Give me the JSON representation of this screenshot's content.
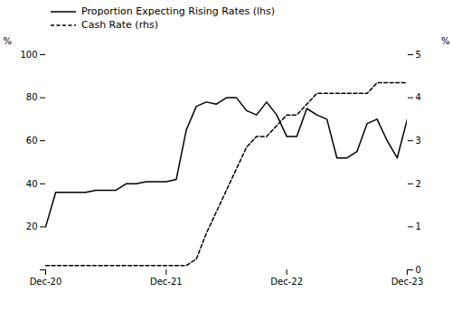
{
  "chart_data": {
    "type": "line",
    "x": [
      0,
      1,
      2,
      3,
      4,
      5,
      6,
      7,
      8,
      9,
      10,
      11,
      12,
      13,
      14,
      15,
      16,
      17,
      18,
      19,
      20,
      21,
      22,
      23,
      24,
      25,
      26,
      27,
      28,
      29,
      30,
      31,
      32,
      33,
      34,
      35,
      36
    ],
    "xlim": [
      0,
      36
    ],
    "xticks": [
      {
        "value": 0,
        "label": "Dec-20"
      },
      {
        "value": 12,
        "label": "Dec-21"
      },
      {
        "value": 24,
        "label": "Dec-22"
      },
      {
        "value": 36,
        "label": "Dec-23"
      }
    ],
    "ylabel": "%",
    "ylim": [
      0,
      100
    ],
    "yticks": [
      0,
      20,
      40,
      60,
      80,
      100
    ],
    "y2label": "%",
    "y2lim": [
      0,
      5
    ],
    "y2ticks": [
      0,
      1,
      2,
      3,
      4,
      5
    ],
    "legend": "upper left",
    "series": [
      {
        "name": "Proportion Expecting Rising Rates (lhs)",
        "color": "#000000",
        "line_style": "solid",
        "values": [
          20,
          36,
          36,
          36,
          36,
          37,
          37,
          37,
          40,
          40,
          41,
          41,
          41,
          42,
          65,
          76,
          78,
          77,
          80,
          80,
          74,
          72,
          78,
          72,
          62,
          62,
          75,
          72,
          70,
          52,
          52,
          55,
          68,
          70,
          60,
          52,
          70
        ]
      },
      {
        "name": "Cash Rate (rhs)",
        "color": "#000000",
        "line_style": "dashed",
        "axis": "y2",
        "values": [
          0.1,
          0.1,
          0.1,
          0.1,
          0.1,
          0.1,
          0.1,
          0.1,
          0.1,
          0.1,
          0.1,
          0.1,
          0.1,
          0.1,
          0.1,
          0.25,
          0.85,
          1.35,
          1.85,
          2.35,
          2.85,
          3.1,
          3.1,
          3.35,
          3.6,
          3.6,
          3.85,
          4.1,
          4.1,
          4.1,
          4.1,
          4.1,
          4.1,
          4.35,
          4.35,
          4.35,
          4.35
        ]
      }
    ]
  }
}
